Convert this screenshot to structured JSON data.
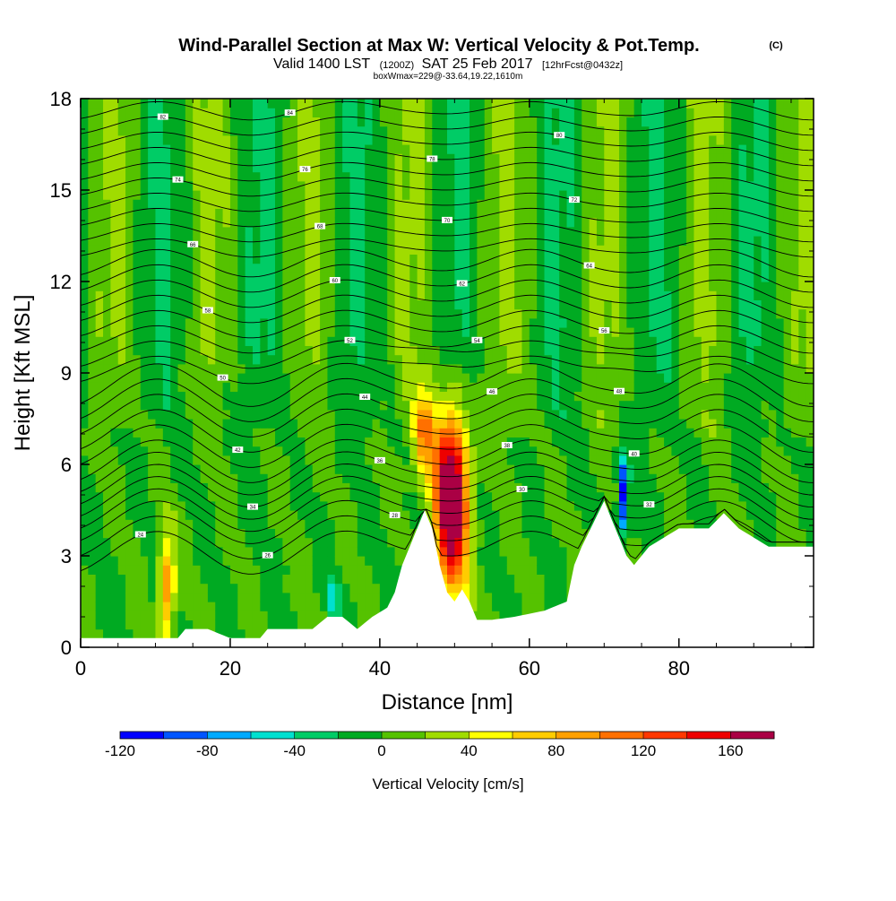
{
  "chart_data": {
    "type": "heatmap",
    "title": "Wind-Parallel Section at Max W: Vertical Velocity & Pot.Temp.",
    "title_mark": "(C)",
    "subtitle": {
      "valid_main": "Valid 1400 LST",
      "valid_utc": "(1200Z)",
      "date": "SAT 25 Feb 2017",
      "forecast": "[12hrFcst@0432z]"
    },
    "box_info": "boxWmax=229@-33.64,19.22,1610m",
    "xlabel": "Distance [nm]",
    "ylabel": "Height [Kft MSL]",
    "xlim": [
      0,
      98
    ],
    "ylim": [
      0,
      18
    ],
    "x_ticks": [
      0,
      20,
      40,
      60,
      80
    ],
    "y_ticks": [
      0,
      3,
      6,
      9,
      12,
      15,
      18
    ],
    "colorbar": {
      "title": "Vertical Velocity [cm/s]",
      "levels": [
        -120,
        -100,
        -80,
        -60,
        -40,
        -20,
        0,
        20,
        40,
        60,
        80,
        100,
        120,
        140,
        160,
        180
      ],
      "labels": [
        "-120",
        "-80",
        "-40",
        "0",
        "40",
        "80",
        "120",
        "160"
      ],
      "colors": [
        "#0000ff",
        "#0055ff",
        "#00aaff",
        "#00e0d0",
        "#00cc66",
        "#00aa22",
        "#55c200",
        "#a0dc00",
        "#ffff00",
        "#ffcc00",
        "#ffa000",
        "#ff7000",
        "#ff3800",
        "#ee0000",
        "#aa0044"
      ]
    },
    "terrain_kft": [
      [
        0,
        0.3
      ],
      [
        3,
        0.3
      ],
      [
        6,
        0.3
      ],
      [
        9,
        0.3
      ],
      [
        11,
        0.3
      ],
      [
        13,
        0.3
      ],
      [
        14,
        0.6
      ],
      [
        17,
        0.6
      ],
      [
        20,
        0.3
      ],
      [
        24,
        0.3
      ],
      [
        25,
        0.6
      ],
      [
        31,
        0.6
      ],
      [
        33,
        1.0
      ],
      [
        35,
        1.0
      ],
      [
        37,
        0.6
      ],
      [
        39,
        1.0
      ],
      [
        41,
        1.3
      ],
      [
        42,
        1.8
      ],
      [
        43,
        2.7
      ],
      [
        44,
        3.3
      ],
      [
        45,
        3.9
      ],
      [
        46,
        4.5
      ],
      [
        47,
        3.9
      ],
      [
        48,
        2.7
      ],
      [
        49,
        1.8
      ],
      [
        50,
        1.5
      ],
      [
        51,
        1.9
      ],
      [
        52,
        1.5
      ],
      [
        53,
        0.9
      ],
      [
        55,
        0.9
      ],
      [
        58,
        1.0
      ],
      [
        62,
        1.2
      ],
      [
        65,
        1.5
      ],
      [
        66,
        2.7
      ],
      [
        67,
        3.3
      ],
      [
        68,
        3.8
      ],
      [
        69,
        4.3
      ],
      [
        70,
        4.8
      ],
      [
        71,
        4.2
      ],
      [
        72,
        3.6
      ],
      [
        73,
        3.0
      ],
      [
        74,
        2.7
      ],
      [
        75,
        3.0
      ],
      [
        76,
        3.3
      ],
      [
        78,
        3.6
      ],
      [
        80,
        3.9
      ],
      [
        84,
        3.9
      ],
      [
        86,
        4.4
      ],
      [
        88,
        3.9
      ],
      [
        90,
        3.6
      ],
      [
        92,
        3.3
      ],
      [
        96,
        3.3
      ],
      [
        98,
        3.3
      ]
    ],
    "updrafts": [
      {
        "x": 49.5,
        "z": 4.8,
        "w": 229,
        "sx": 1.6,
        "sz": 2.0
      },
      {
        "x": 11.5,
        "z": 1.9,
        "w": 100,
        "sx": 0.8,
        "sz": 1.2
      },
      {
        "x": 45.8,
        "z": 7.0,
        "w": 95,
        "sx": 1.0,
        "sz": 1.0
      },
      {
        "x": 72.5,
        "z": 5.0,
        "w": -120,
        "sx": 0.5,
        "sz": 0.9
      },
      {
        "x": 33.8,
        "z": 1.5,
        "w": -50,
        "sx": 0.5,
        "sz": 0.6
      }
    ],
    "theta_contours": {
      "base_height_kft": [
        3.1,
        3.6,
        4.1,
        4.5,
        4.9,
        5.3,
        5.7,
        6.1,
        6.6,
        7.1,
        7.6,
        8.1,
        8.6,
        9.1,
        9.6,
        10.1,
        10.6,
        11.1,
        11.6,
        12.1,
        12.6,
        13.1,
        13.6,
        14.1,
        14.6,
        15.1,
        15.6,
        16.1,
        16.6,
        17.1,
        17.6
      ],
      "labels": [
        "24",
        "26",
        "28",
        "30",
        "32",
        "34",
        "36",
        "38",
        "40",
        "42",
        "44",
        "46",
        "48",
        "50",
        "52",
        "54",
        "56",
        "58",
        "60",
        "62",
        "64",
        "66",
        "68",
        "70",
        "72",
        "74",
        "76",
        "78",
        "80",
        "82",
        "84"
      ]
    }
  }
}
